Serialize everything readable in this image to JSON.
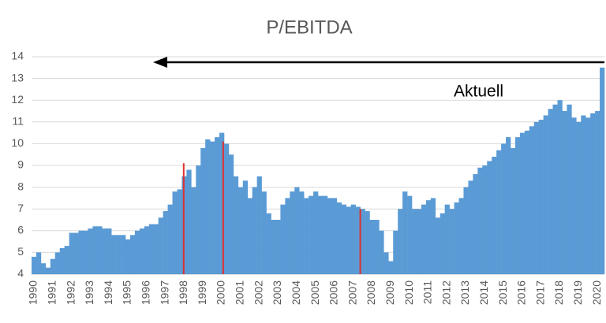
{
  "chart_data": {
    "type": "bar",
    "title": "P/EBITDA",
    "annotation": "Aktuell",
    "color": "#5b9bd5",
    "grid": true,
    "x": [
      1990,
      1990.25,
      1990.5,
      1990.75,
      1991,
      1991.25,
      1991.5,
      1991.75,
      1992,
      1992.25,
      1992.5,
      1992.75,
      1993,
      1993.25,
      1993.5,
      1993.75,
      1994,
      1994.25,
      1994.5,
      1994.75,
      1995,
      1995.25,
      1995.5,
      1995.75,
      1996,
      1996.25,
      1996.5,
      1996.75,
      1997,
      1997.25,
      1997.5,
      1997.75,
      1998,
      1998.25,
      1998.5,
      1998.75,
      1999,
      1999.25,
      1999.5,
      1999.75,
      2000,
      2000.25,
      2000.5,
      2000.75,
      2001,
      2001.25,
      2001.5,
      2001.75,
      2002,
      2002.25,
      2002.5,
      2002.75,
      2003,
      2003.25,
      2003.5,
      2003.75,
      2004,
      2004.25,
      2004.5,
      2004.75,
      2005,
      2005.25,
      2005.5,
      2005.75,
      2006,
      2006.25,
      2006.5,
      2006.75,
      2007,
      2007.25,
      2007.5,
      2007.75,
      2008,
      2008.25,
      2008.5,
      2008.75,
      2009,
      2009.25,
      2009.5,
      2009.75,
      2010,
      2010.25,
      2010.5,
      2010.75,
      2011,
      2011.25,
      2011.5,
      2011.75,
      2012,
      2012.25,
      2012.5,
      2012.75,
      2013,
      2013.25,
      2013.5,
      2013.75,
      2014,
      2014.25,
      2014.5,
      2014.75,
      2015,
      2015.25,
      2015.5,
      2015.75,
      2016,
      2016.25,
      2016.5,
      2016.75,
      2017,
      2017.25,
      2017.5,
      2017.75,
      2018,
      2018.25,
      2018.5,
      2018.75,
      2019,
      2019.25,
      2019.5,
      2019.75,
      2020,
      2020.25
    ],
    "values": [
      4.8,
      5.0,
      4.5,
      4.3,
      4.7,
      5.0,
      5.2,
      5.3,
      5.9,
      5.9,
      6.0,
      6.0,
      6.1,
      6.2,
      6.2,
      6.1,
      6.1,
      5.8,
      5.8,
      5.8,
      5.6,
      5.8,
      6.0,
      6.1,
      6.2,
      6.3,
      6.3,
      6.6,
      6.9,
      7.2,
      7.8,
      7.9,
      8.5,
      8.8,
      8.0,
      9.0,
      9.8,
      10.2,
      10.1,
      10.3,
      10.5,
      10.0,
      9.5,
      8.5,
      8.0,
      8.3,
      7.5,
      8.0,
      8.5,
      7.8,
      6.8,
      6.5,
      6.5,
      7.2,
      7.5,
      7.8,
      8.0,
      7.8,
      7.5,
      7.6,
      7.8,
      7.6,
      7.6,
      7.5,
      7.5,
      7.3,
      7.2,
      7.1,
      7.2,
      7.1,
      7.0,
      6.9,
      6.5,
      6.5,
      6.0,
      5.0,
      4.6,
      6.0,
      7.0,
      7.8,
      7.6,
      7.0,
      7.0,
      7.2,
      7.4,
      7.5,
      6.6,
      6.8,
      7.2,
      7.0,
      7.3,
      7.5,
      8.0,
      8.3,
      8.6,
      8.9,
      9.0,
      9.2,
      9.4,
      9.7,
      10.0,
      10.3,
      9.8,
      10.3,
      10.5,
      10.6,
      10.8,
      11.0,
      11.1,
      11.3,
      11.6,
      11.8,
      12.0,
      11.5,
      11.8,
      11.2,
      11.0,
      11.3,
      11.2,
      11.4,
      11.5,
      13.5
    ],
    "highlights": {
      "color": "#e03030",
      "x": [
        1998.1,
        2000.2,
        2007.5
      ],
      "values": [
        9.1,
        10.1,
        7.0
      ]
    },
    "xlim": [
      1990,
      2020.5
    ],
    "xticks": [
      1990,
      1991,
      1992,
      1993,
      1994,
      1995,
      1996,
      1997,
      1998,
      1999,
      2000,
      2001,
      2002,
      2003,
      2004,
      2005,
      2006,
      2007,
      2008,
      2009,
      2010,
      2011,
      2012,
      2013,
      2014,
      2015,
      2016,
      2017,
      2018,
      2019,
      2020
    ],
    "ylim": [
      4,
      14
    ],
    "yticks": [
      4,
      5,
      6,
      7,
      8,
      9,
      10,
      11,
      12,
      13,
      14
    ]
  }
}
